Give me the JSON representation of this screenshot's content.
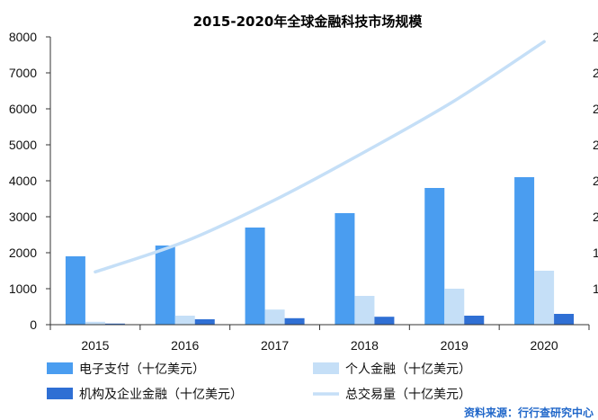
{
  "chart_data": {
    "type": "bar",
    "title": "2015-2020年全球金融科技市场规模",
    "categories": [
      "2015",
      "2016",
      "2017",
      "2018",
      "2019",
      "2020"
    ],
    "ylim": [
      0,
      8000
    ],
    "yticks": [
      "0",
      "1000",
      "2000",
      "3000",
      "4000",
      "5000",
      "6000",
      "7000",
      "8000"
    ],
    "series": [
      {
        "name": "电子支付（十亿美元）",
        "type": "bar",
        "color": "#4a9df0",
        "values": [
          1900,
          2200,
          2700,
          3100,
          3800,
          4100
        ]
      },
      {
        "name": "个人金融（十亿美元）",
        "type": "bar",
        "color": "#c5dff7",
        "values": [
          80,
          250,
          420,
          800,
          1000,
          1500
        ]
      },
      {
        "name": "机构及企业金融（十亿美元）",
        "type": "bar",
        "color": "#2f6fd4",
        "values": [
          30,
          150,
          180,
          220,
          250,
          300
        ]
      },
      {
        "name": "总交易量（十亿美元）",
        "type": "line",
        "color": "#c5dff7",
        "values": [
          1650,
          2600,
          3900,
          5400,
          7000,
          8850
        ]
      }
    ],
    "secondary_axis_visible_labels": [
      "2",
      "2",
      "2",
      "2",
      "2",
      "2",
      "1",
      "1"
    ],
    "secondary_ylim": [
      0,
      9000
    ],
    "grid": false,
    "legend_position": "bottom"
  },
  "source": "资料来源：行行查研究中心"
}
